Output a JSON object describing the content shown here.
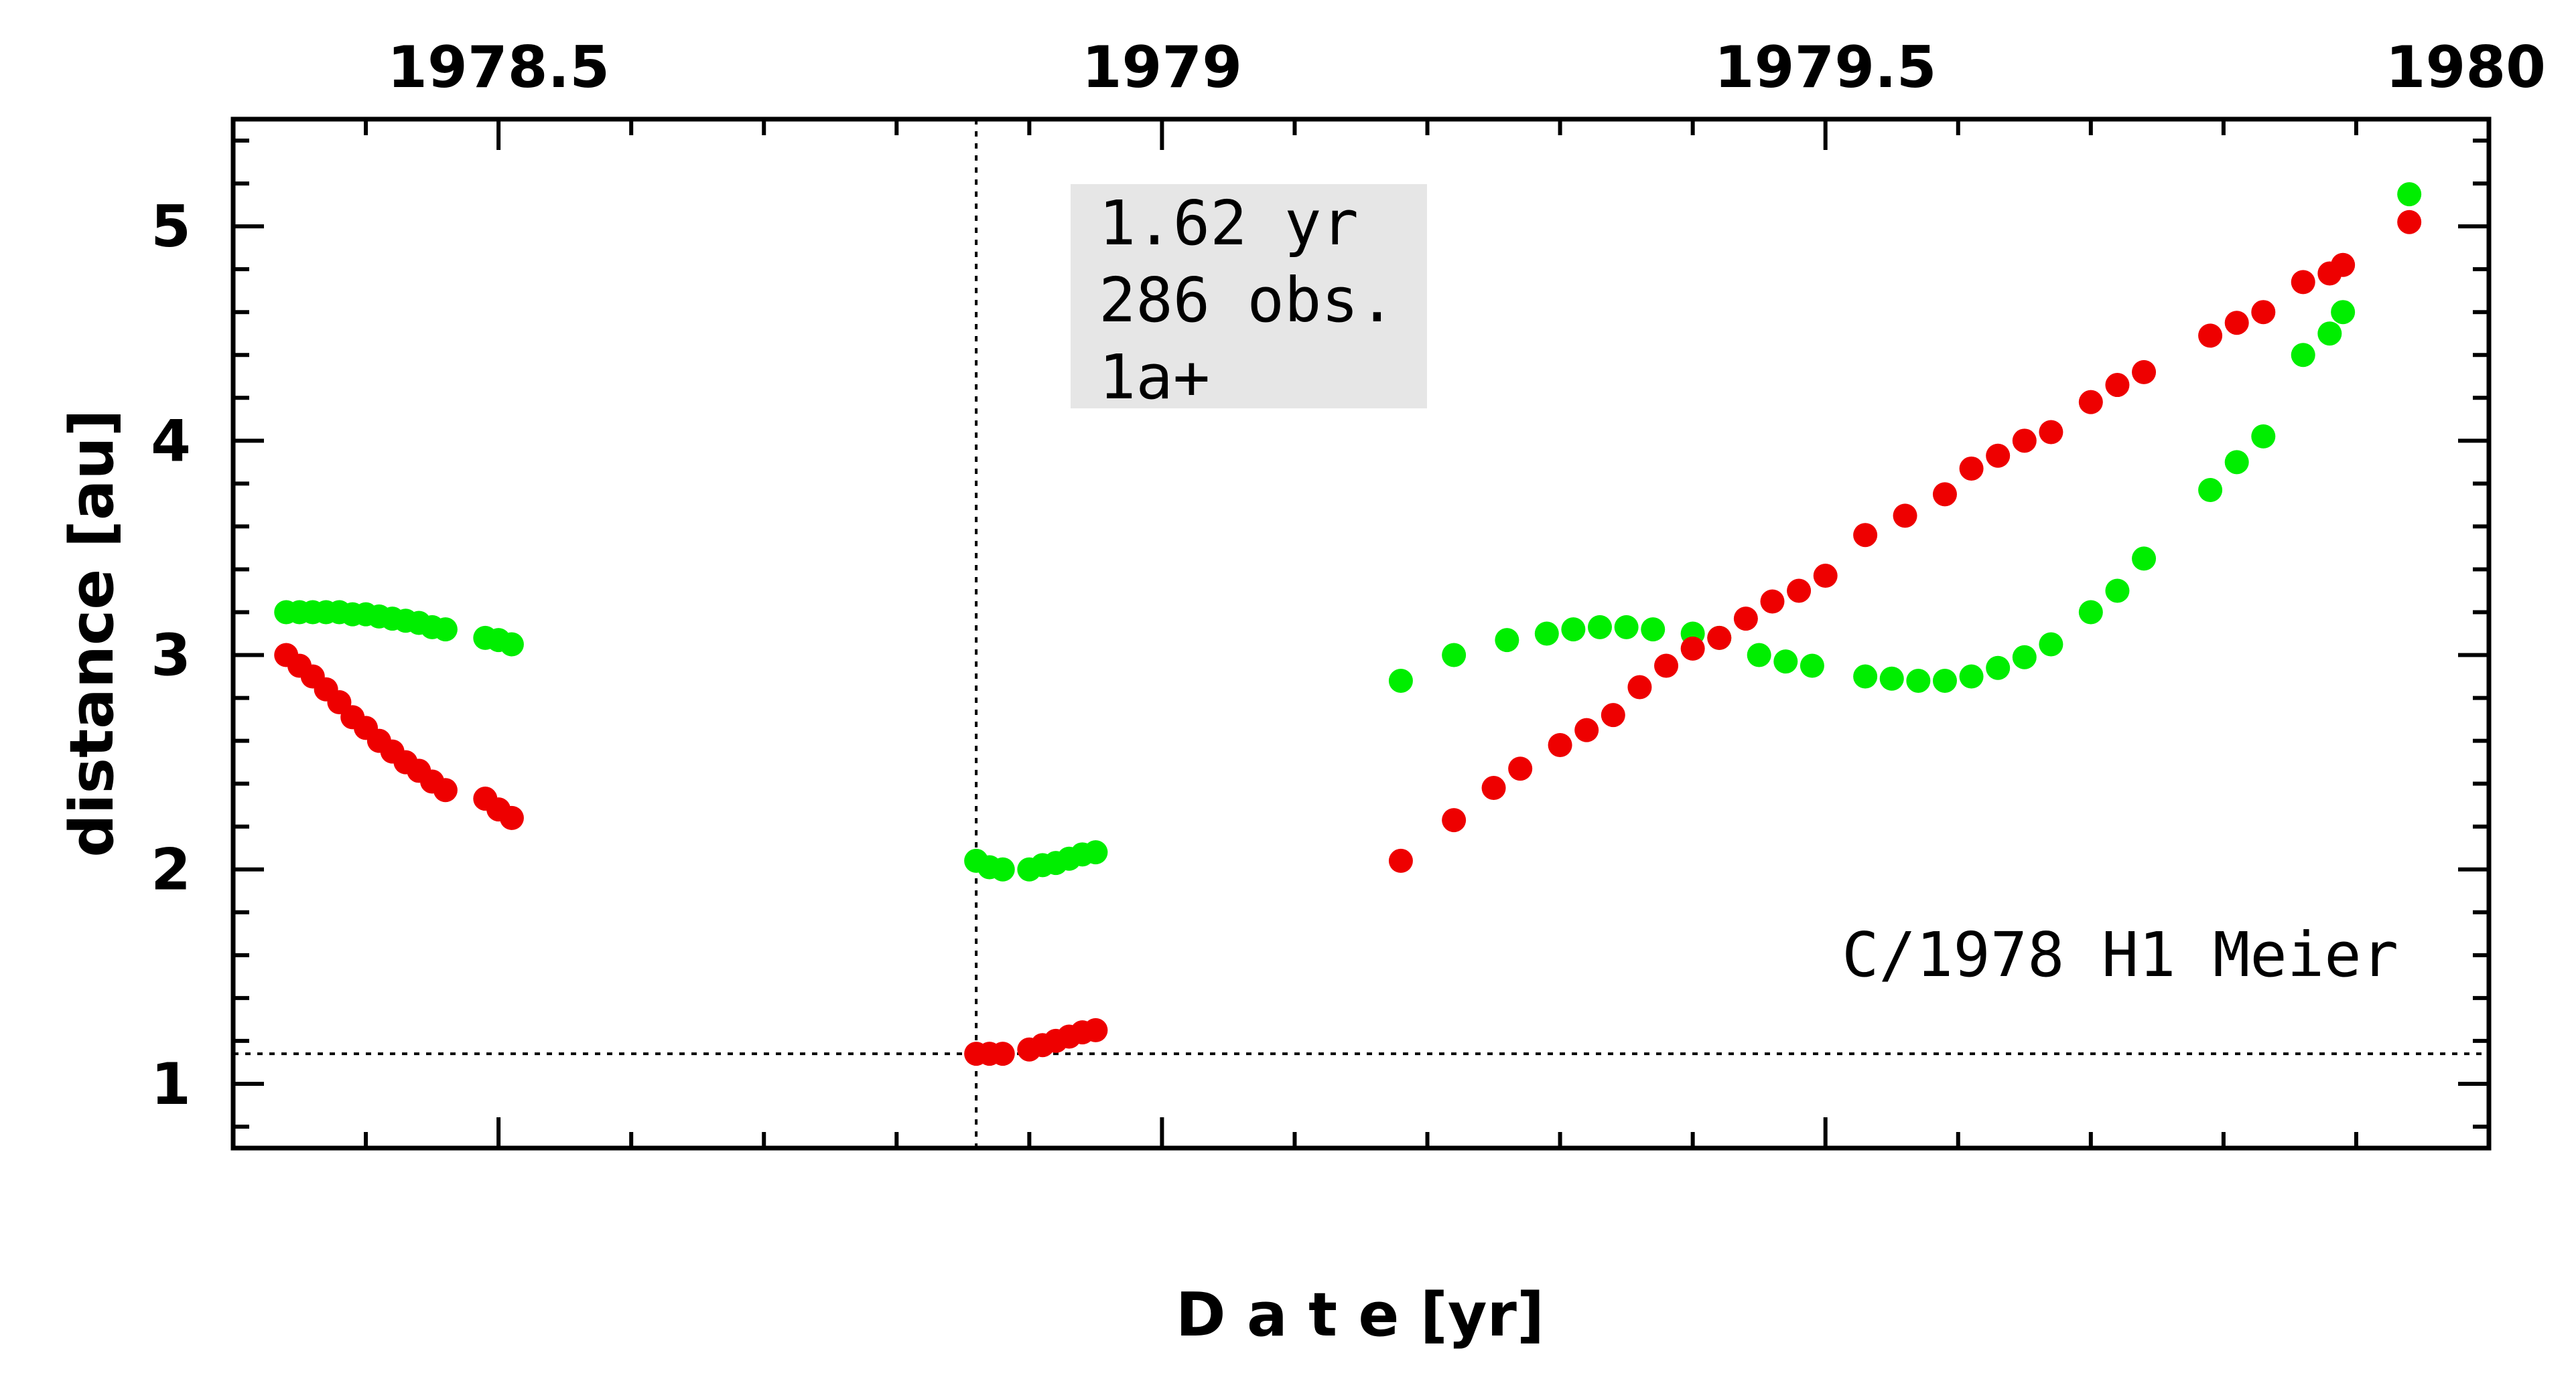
{
  "chart_data": {
    "type": "scatter",
    "xlabel": "D a t e [yr]",
    "ylabel": "distance [au]",
    "xlim": [
      1978.3,
      1980.0
    ],
    "ylim": [
      0.7,
      5.5
    ],
    "x_ticks": [
      1978.5,
      1979,
      1979.5,
      1980
    ],
    "x_tick_labels": [
      "1978.5",
      "1979",
      "1979.5",
      "1980"
    ],
    "y_ticks": [
      1,
      2,
      3,
      4,
      5
    ],
    "y_tick_labels": [
      "1",
      "2",
      "3",
      "4",
      "5"
    ],
    "x_axis_position": "top",
    "grid": false,
    "info_box": [
      "1.62 yr",
      "286 obs.",
      "1a+"
    ],
    "annotation": "C/1978 H1 Meier",
    "reference_lines": {
      "vertical_x": 1978.86,
      "horizontal_y": 1.14
    },
    "colors": {
      "series_a": "#00ee00",
      "series_b": "#ee0000",
      "info_box_bg": "#e6e6e6"
    },
    "series": [
      {
        "color": "#00ee00",
        "x": [
          1978.34,
          1978.35,
          1978.36,
          1978.37,
          1978.38,
          1978.39,
          1978.4,
          1978.41,
          1978.42,
          1978.43,
          1978.44,
          1978.45,
          1978.46,
          1978.49,
          1978.5,
          1978.51,
          1978.86,
          1978.87,
          1978.88,
          1978.9,
          1978.91,
          1978.92,
          1978.93,
          1978.94,
          1978.95,
          1979.18,
          1979.22,
          1979.26,
          1979.29,
          1979.31,
          1979.33,
          1979.35,
          1979.37,
          1979.4,
          1979.42,
          1979.45,
          1979.47,
          1979.49,
          1979.53,
          1979.55,
          1979.57,
          1979.59,
          1979.61,
          1979.63,
          1979.65,
          1979.67,
          1979.7,
          1979.72,
          1979.74,
          1979.79,
          1979.81,
          1979.83,
          1979.86,
          1979.88,
          1979.89,
          1979.94
        ],
        "y": [
          3.2,
          3.2,
          3.2,
          3.2,
          3.2,
          3.19,
          3.19,
          3.18,
          3.17,
          3.16,
          3.15,
          3.13,
          3.12,
          3.08,
          3.07,
          3.05,
          2.04,
          2.01,
          2.0,
          2.0,
          2.02,
          2.03,
          2.05,
          2.07,
          2.08,
          2.88,
          3.0,
          3.07,
          3.1,
          3.12,
          3.13,
          3.13,
          3.12,
          3.1,
          3.08,
          3.0,
          2.97,
          2.95,
          2.9,
          2.89,
          2.88,
          2.88,
          2.9,
          2.94,
          2.99,
          3.05,
          3.2,
          3.3,
          3.45,
          3.77,
          3.9,
          4.02,
          4.4,
          4.5,
          4.6,
          5.15
        ]
      },
      {
        "color": "#ee0000",
        "x": [
          1978.34,
          1978.35,
          1978.36,
          1978.37,
          1978.38,
          1978.39,
          1978.4,
          1978.41,
          1978.42,
          1978.43,
          1978.44,
          1978.45,
          1978.46,
          1978.49,
          1978.5,
          1978.51,
          1978.86,
          1978.87,
          1978.88,
          1978.9,
          1978.91,
          1978.92,
          1978.93,
          1978.94,
          1978.95,
          1979.18,
          1979.22,
          1979.25,
          1979.27,
          1979.3,
          1979.32,
          1979.34,
          1979.36,
          1979.38,
          1979.4,
          1979.42,
          1979.44,
          1979.46,
          1979.48,
          1979.5,
          1979.53,
          1979.56,
          1979.59,
          1979.61,
          1979.63,
          1979.65,
          1979.67,
          1979.7,
          1979.72,
          1979.74,
          1979.79,
          1979.81,
          1979.83,
          1979.86,
          1979.88,
          1979.89,
          1979.94
        ],
        "y": [
          3.0,
          2.95,
          2.9,
          2.84,
          2.78,
          2.71,
          2.66,
          2.6,
          2.55,
          2.5,
          2.46,
          2.41,
          2.37,
          2.33,
          2.28,
          2.24,
          1.14,
          1.14,
          1.14,
          1.16,
          1.18,
          1.2,
          1.22,
          1.24,
          1.25,
          2.04,
          2.23,
          2.38,
          2.47,
          2.58,
          2.65,
          2.72,
          2.85,
          2.95,
          3.03,
          3.08,
          3.17,
          3.25,
          3.3,
          3.37,
          3.56,
          3.65,
          3.75,
          3.87,
          3.93,
          4.0,
          4.04,
          4.18,
          4.26,
          4.32,
          4.49,
          4.55,
          4.6,
          4.74,
          4.78,
          4.82,
          5.02
        ]
      }
    ]
  }
}
